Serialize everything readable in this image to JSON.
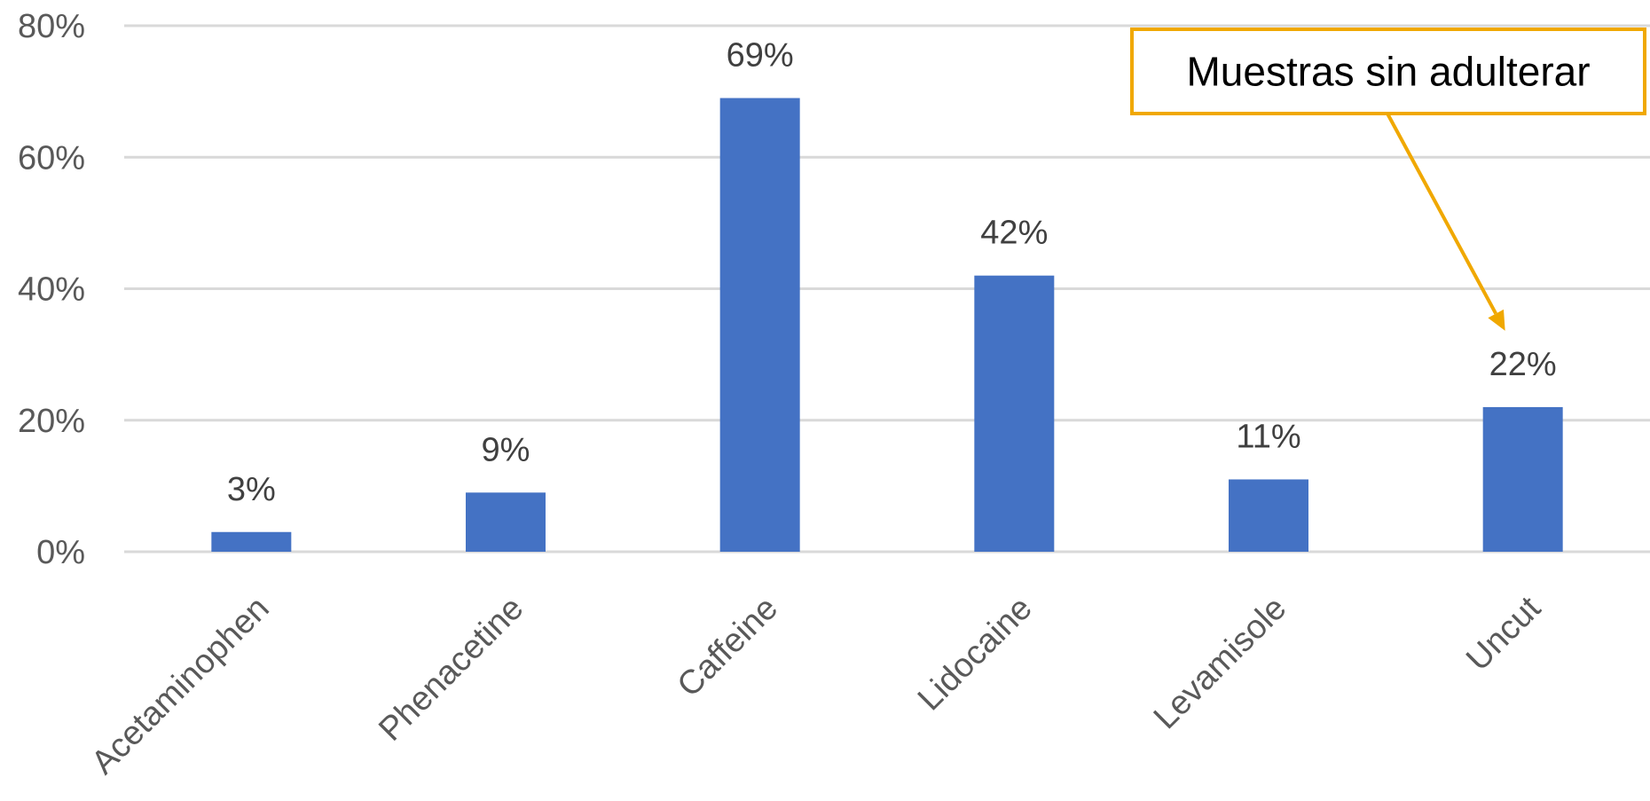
{
  "chart_data": {
    "type": "bar",
    "categories": [
      "Acetaminophen",
      "Phenacetine",
      "Caffeine",
      "Lidocaine",
      "Levamisole",
      "Uncut"
    ],
    "values": [
      3,
      9,
      69,
      42,
      11,
      22
    ],
    "data_labels": [
      "3%",
      "9%",
      "69%",
      "42%",
      "11%",
      "22%"
    ],
    "y_ticks": [
      0,
      20,
      40,
      60,
      80
    ],
    "y_tick_labels": [
      "0%",
      "20%",
      "40%",
      "60%",
      "80%"
    ],
    "ylim": [
      0,
      80
    ],
    "grid": true,
    "bar_color": "#4472C4",
    "grid_color": "#D9D9D9",
    "annotation": {
      "text": "Muestras sin adulterar",
      "target_category": "Uncut",
      "color": "#F0A800"
    }
  }
}
